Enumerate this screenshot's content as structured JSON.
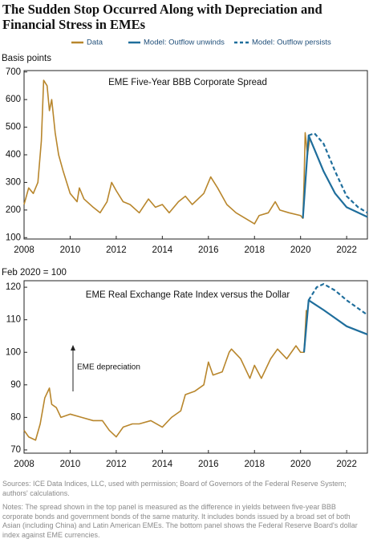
{
  "title": "The Sudden Stop Occurred Along with Depreciation and Financial Stress in EMEs",
  "source": "Sources: ICE Data Indices, LLC, used with permission; Board of Governors of the Federal Reserve System; authors' calculations.",
  "notes": "Notes: The spread shown in the top panel is measured as the difference in yields between five-year BBB corporate bonds and government bonds of the same maturity. It includes bonds issued by a broad set of both Asian (including China) and Latin American EMEs. The bottom panel shows the Federal Reserve Board's dollar index against EME currencies.",
  "chart_data": [
    {
      "type": "line",
      "title": "EME Five-Year BBB Corporate Spread",
      "y_label": "Basis points",
      "xlim": [
        2008,
        2022.9
      ],
      "xticks": [
        2008,
        2010,
        2012,
        2014,
        2016,
        2018,
        2020,
        2022
      ],
      "ylim": [
        95,
        705
      ],
      "yticks": [
        100,
        200,
        300,
        400,
        500,
        600,
        700
      ],
      "series": [
        {
          "name": "Data",
          "color": "#b8862c",
          "dash": false,
          "x": [
            2008.0,
            2008.2,
            2008.4,
            2008.6,
            2008.75,
            2008.85,
            2009.0,
            2009.1,
            2009.2,
            2009.35,
            2009.5,
            2009.7,
            2010.0,
            2010.3,
            2010.4,
            2010.6,
            2011.0,
            2011.3,
            2011.6,
            2011.8,
            2012.0,
            2012.3,
            2012.6,
            2013.0,
            2013.4,
            2013.7,
            2014.0,
            2014.3,
            2014.7,
            2015.0,
            2015.3,
            2015.8,
            2016.1,
            2016.4,
            2016.8,
            2017.2,
            2017.6,
            2018.0,
            2018.2,
            2018.6,
            2018.9,
            2019.1,
            2019.5,
            2020.0,
            2020.1,
            2020.15,
            2020.2,
            2020.3,
            2020.4
          ],
          "values": [
            220,
            280,
            260,
            300,
            450,
            670,
            650,
            560,
            600,
            480,
            400,
            340,
            260,
            230,
            280,
            240,
            210,
            190,
            230,
            300,
            270,
            230,
            220,
            190,
            240,
            210,
            220,
            190,
            230,
            250,
            220,
            260,
            320,
            280,
            220,
            190,
            170,
            150,
            180,
            190,
            230,
            200,
            190,
            180,
            170,
            300,
            480,
            400,
            460
          ]
        },
        {
          "name": "Model: Outflow unwinds",
          "color": "#1f6e9c",
          "dash": false,
          "x": [
            2020.1,
            2020.35,
            2020.6,
            2021.0,
            2021.5,
            2022.0,
            2022.9
          ],
          "values": [
            170,
            470,
            420,
            340,
            260,
            210,
            175
          ]
        },
        {
          "name": "Model: Outflow persists",
          "color": "#1f6e9c",
          "dash": true,
          "x": [
            2020.35,
            2020.6,
            2021.0,
            2021.5,
            2022.0,
            2022.5,
            2022.9
          ],
          "values": [
            470,
            478,
            440,
            340,
            250,
            210,
            190
          ]
        }
      ]
    },
    {
      "type": "line",
      "title": "EME Real Exchange Rate Index versus the Dollar",
      "y_label": "Feb 2020 = 100",
      "annotation": "EME depreciation",
      "xlim": [
        2008,
        2022.9
      ],
      "xticks": [
        2008,
        2010,
        2012,
        2014,
        2016,
        2018,
        2020,
        2022
      ],
      "ylim": [
        69,
        122
      ],
      "yticks": [
        70,
        80,
        90,
        100,
        110,
        120
      ],
      "series": [
        {
          "color": "#b8862c",
          "dash": false,
          "x": [
            2008.0,
            2008.2,
            2008.5,
            2008.7,
            2008.9,
            2009.1,
            2009.2,
            2009.4,
            2009.6,
            2010.0,
            2010.5,
            2011.0,
            2011.4,
            2011.7,
            2012.0,
            2012.3,
            2012.7,
            2013.0,
            2013.5,
            2014.0,
            2014.4,
            2014.8,
            2015.0,
            2015.4,
            2015.8,
            2016.0,
            2016.2,
            2016.6,
            2016.9,
            2017.0,
            2017.4,
            2017.8,
            2018.0,
            2018.3,
            2018.7,
            2019.0,
            2019.4,
            2019.8,
            2020.0,
            2020.15,
            2020.25
          ],
          "values": [
            76,
            74,
            73,
            78,
            86,
            89,
            84,
            83,
            80,
            81,
            80,
            79,
            79,
            76,
            74,
            77,
            78,
            78,
            79,
            77,
            80,
            82,
            87,
            88,
            90,
            97,
            93,
            94,
            100,
            101,
            98,
            92,
            96,
            92,
            98,
            101,
            98,
            102,
            100,
            100,
            113
          ]
        },
        {
          "color": "#1f6e9c",
          "dash": false,
          "x": [
            2020.15,
            2020.35,
            2021.0,
            2021.5,
            2022.0,
            2022.9
          ],
          "values": [
            100,
            116,
            113,
            110.5,
            108,
            105.5
          ]
        },
        {
          "color": "#1f6e9c",
          "dash": true,
          "x": [
            2020.35,
            2020.7,
            2021.0,
            2021.5,
            2022.0,
            2022.9
          ],
          "values": [
            116,
            120,
            121,
            119,
            116,
            111.5
          ]
        }
      ]
    }
  ]
}
